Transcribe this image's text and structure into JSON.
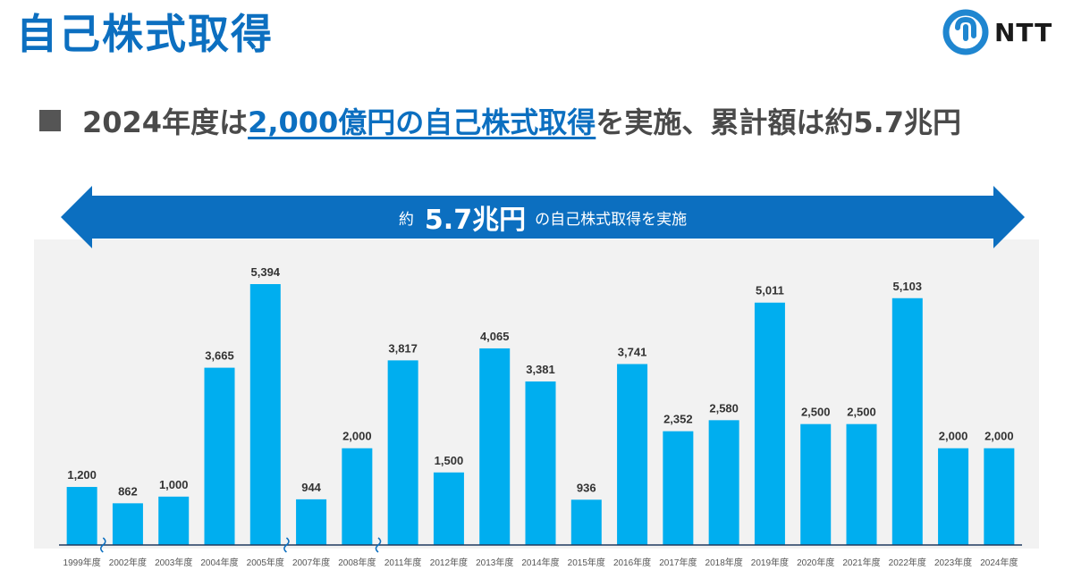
{
  "page": {
    "title": "自己株式取得",
    "logo_text": "NTT",
    "headline_pre": "2024年度は",
    "headline_highlight": "2,000億円の自己株式取得",
    "headline_post": "を実施、累計額は約5.7兆円",
    "arrow_prefix": "約",
    "arrow_value": "5.7兆円",
    "arrow_suffix": "の自己株式取得を実施"
  },
  "colors": {
    "title": "#0c6fc0",
    "arrow": "#0c6fc0",
    "bar": "#00aeef",
    "label": "#333333",
    "axis": "#1f3a5f",
    "break_mark": "#0c6fc0",
    "logo": "#1f86d0"
  },
  "chart_data": {
    "type": "bar",
    "categories": [
      "1999年度",
      "2002年度",
      "2003年度",
      "2004年度",
      "2005年度",
      "2007年度",
      "2008年度",
      "2011年度",
      "2012年度",
      "2013年度",
      "2014年度",
      "2015年度",
      "2016年度",
      "2017年度",
      "2018年度",
      "2019年度",
      "2020年度",
      "2021年度",
      "2022年度",
      "2023年度",
      "2024年度"
    ],
    "values": [
      1200,
      862,
      1000,
      3665,
      5394,
      944,
      2000,
      3817,
      1500,
      4065,
      3381,
      936,
      3741,
      2352,
      2580,
      5011,
      2500,
      2500,
      5103,
      2000,
      2000
    ],
    "value_labels": [
      "1,200",
      "862",
      "1,000",
      "3,665",
      "5,394",
      "944",
      "2,000",
      "3,817",
      "1,500",
      "4,065",
      "3,381",
      "936",
      "3,741",
      "2,352",
      "2,580",
      "5,011",
      "2,500",
      "2,500",
      "5,103",
      "2,000",
      "2,000"
    ],
    "axis_breaks_after": [
      "1999年度",
      "2005年度",
      "2008年度"
    ],
    "ylim": [
      0,
      5500
    ],
    "grid": false,
    "legend": "none"
  }
}
